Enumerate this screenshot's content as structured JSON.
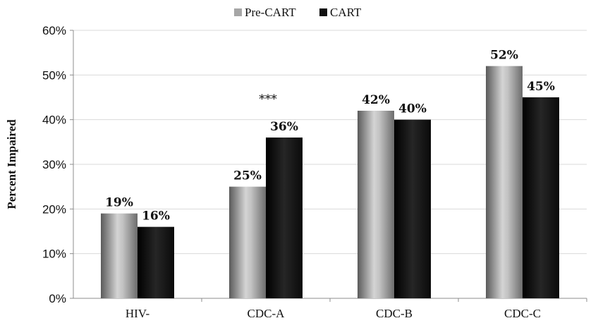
{
  "chart_data": {
    "type": "bar",
    "categories": [
      "HIV-",
      "CDC-A",
      "CDC-B",
      "CDC-C"
    ],
    "series": [
      {
        "name": "Pre-CART",
        "values": [
          19,
          25,
          42,
          52
        ],
        "labels": [
          "19%",
          "25%",
          "42%",
          "52%"
        ],
        "color": "#a6a6a6"
      },
      {
        "name": "CART",
        "values": [
          16,
          36,
          40,
          45
        ],
        "labels": [
          "16%",
          "36%",
          "40%",
          "45%"
        ],
        "color": "#141414"
      }
    ],
    "ylabel": "Percent Impaired",
    "ylim": [
      0,
      60
    ],
    "yticks": [
      0,
      10,
      20,
      30,
      40,
      50,
      60
    ],
    "ytick_labels": [
      "0%",
      "10%",
      "20%",
      "30%",
      "40%",
      "50%",
      "60%"
    ],
    "grid": true,
    "legend_position": "top-center",
    "annotations": [
      {
        "category": "CDC-A",
        "text": "***"
      }
    ]
  }
}
